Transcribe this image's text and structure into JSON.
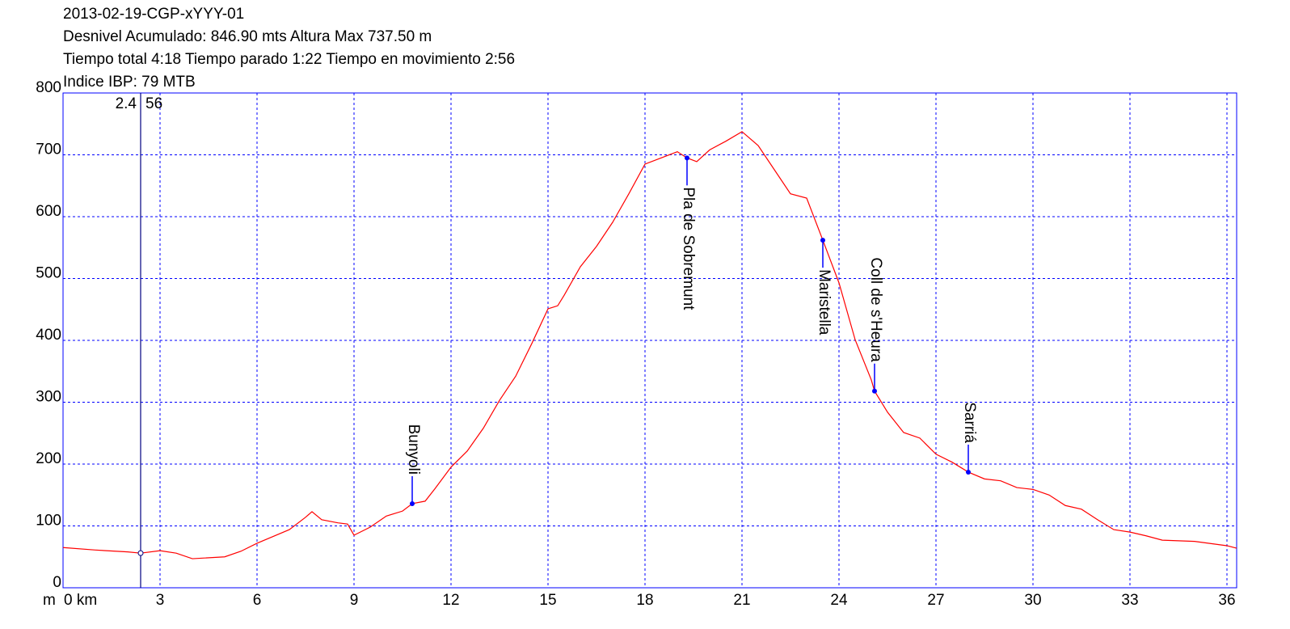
{
  "chart_data": {
    "type": "line",
    "title_lines": [
      "2013-02-19-CGP-xYYY-01",
      "Desnivel Acumulado: 846.90 mts  Altura Max 737.50 m",
      "Tiempo total 4:18 Tiempo parado 1:22 Tiempo en movimiento 2:56",
      "Indice IBP: 79 MTB"
    ],
    "y_label": "m",
    "xlim": [
      0,
      36.3
    ],
    "ylim": [
      0,
      800
    ],
    "xticks": [
      {
        "value": 0,
        "label": "0 km"
      },
      3,
      6,
      9,
      12,
      15,
      18,
      21,
      24,
      27,
      30,
      33,
      36
    ],
    "yticks": [
      0,
      100,
      200,
      300,
      400,
      500,
      600,
      700,
      800
    ],
    "grid": true,
    "x": [
      0,
      1,
      2,
      2.4,
      3,
      3.5,
      4,
      5,
      5.5,
      6,
      7,
      7.5,
      7.7,
      8,
      8.5,
      8.8,
      9,
      9.5,
      10,
      10.5,
      10.8,
      11.2,
      11.5,
      12,
      12.5,
      13,
      13.5,
      14,
      14.5,
      15,
      15.3,
      15.5,
      16,
      16.5,
      17,
      17.5,
      18,
      18.5,
      19,
      19.3,
      19.6,
      20,
      20.5,
      21,
      21.5,
      22,
      22.5,
      23,
      23.5,
      24,
      24.5,
      25,
      25.1,
      25.5,
      26,
      26.5,
      27,
      27.5,
      28,
      28.5,
      29,
      29.5,
      30,
      30.5,
      31,
      31.5,
      32,
      32.5,
      33,
      33.5,
      34,
      35,
      36,
      36.3
    ],
    "series": [
      {
        "name": "Altura",
        "color": "#ff0000",
        "values": [
          65,
          61,
          58,
          56,
          60,
          56,
          47,
          50,
          59,
          72,
          94,
          114,
          123,
          110,
          105,
          103,
          85,
          98,
          116,
          124,
          136,
          140,
          160,
          195,
          221,
          258,
          303,
          342,
          395,
          451,
          456,
          473,
          519,
          552,
          591,
          637,
          685,
          695,
          705,
          695,
          689,
          708,
          722,
          737.5,
          715,
          676,
          637,
          630,
          562,
          493,
          401,
          336,
          318,
          284,
          251,
          242,
          216,
          203,
          187,
          176,
          173,
          162,
          159,
          150,
          133,
          127,
          110,
          94,
          90,
          84,
          77,
          75,
          68,
          64
        ]
      }
    ],
    "cursor": {
      "x": 2.4,
      "y": 56
    },
    "waypoints": [
      {
        "name": "Bunyoli",
        "x": 10.8,
        "y": 136,
        "position": "above"
      },
      {
        "name": "Pla de Sobremunt",
        "x": 19.3,
        "y": 695,
        "position": "below"
      },
      {
        "name": "Maristella",
        "x": 23.5,
        "y": 562,
        "position": "below"
      },
      {
        "name": "Coll de s'Heura",
        "x": 25.1,
        "y": 318,
        "position": "above"
      },
      {
        "name": "Sarriá",
        "x": 28.0,
        "y": 187,
        "position": "above"
      }
    ],
    "waypoint_color": "#0000ff"
  }
}
